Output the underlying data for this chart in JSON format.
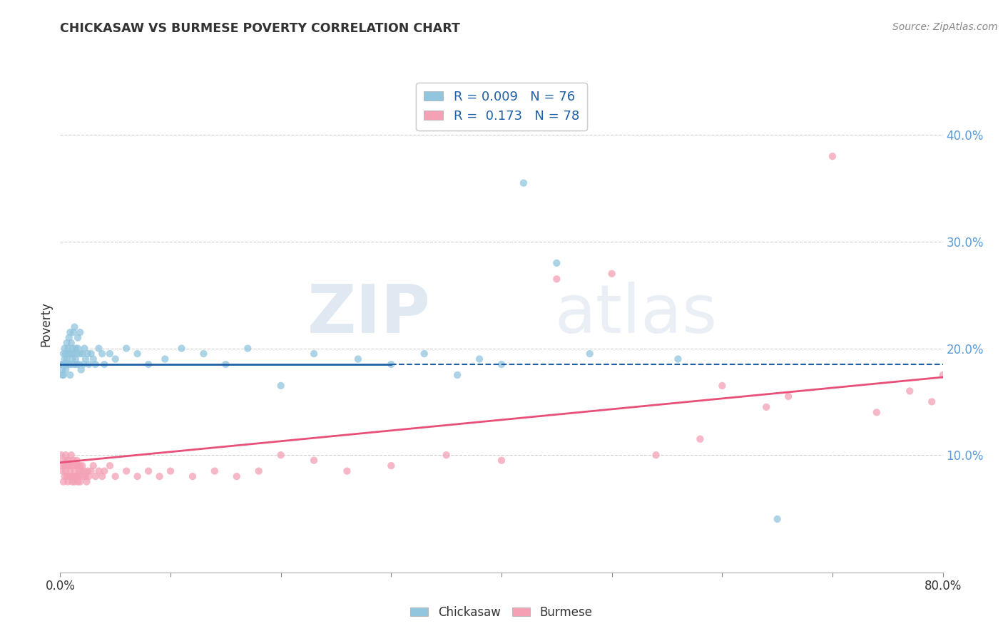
{
  "title": "CHICKASAW VS BURMESE POVERTY CORRELATION CHART",
  "source": "Source: ZipAtlas.com",
  "ylabel": "Poverty",
  "ytick_labels": [
    "10.0%",
    "20.0%",
    "30.0%",
    "40.0%"
  ],
  "ytick_values": [
    0.1,
    0.2,
    0.3,
    0.4
  ],
  "xlim": [
    0.0,
    0.8
  ],
  "ylim": [
    -0.01,
    0.455
  ],
  "xtick_vals": [
    0.0,
    0.1,
    0.2,
    0.3,
    0.4,
    0.5,
    0.6,
    0.7,
    0.8
  ],
  "watermark_zip": "ZIP",
  "watermark_atlas": "atlas",
  "legend_label_1": "R = 0.009   N = 76",
  "legend_label_2": "R =  0.173   N = 78",
  "legend_label_chickasaw": "Chickasaw",
  "legend_label_burmese": "Burmese",
  "chickasaw_color": "#92c5de",
  "burmese_color": "#f4a0b5",
  "chickasaw_line_color": "#1f5fa6",
  "burmese_line_color": "#e8507a",
  "grid_color": "#d0d0d0",
  "background_color": "#ffffff",
  "chickasaw_line_solid_end": 0.3,
  "chickasaw_line_y_start": 0.185,
  "chickasaw_line_y_end": 0.185,
  "burmese_line_y_start": 0.093,
  "burmese_line_y_end": 0.173,
  "chickasaw_x": [
    0.001,
    0.002,
    0.002,
    0.003,
    0.003,
    0.003,
    0.004,
    0.004,
    0.004,
    0.005,
    0.005,
    0.005,
    0.006,
    0.006,
    0.007,
    0.007,
    0.007,
    0.008,
    0.008,
    0.008,
    0.009,
    0.009,
    0.01,
    0.01,
    0.01,
    0.011,
    0.011,
    0.012,
    0.012,
    0.013,
    0.013,
    0.014,
    0.014,
    0.015,
    0.015,
    0.016,
    0.016,
    0.017,
    0.018,
    0.018,
    0.019,
    0.02,
    0.021,
    0.022,
    0.023,
    0.025,
    0.026,
    0.028,
    0.03,
    0.032,
    0.035,
    0.038,
    0.04,
    0.045,
    0.05,
    0.06,
    0.07,
    0.08,
    0.095,
    0.11,
    0.13,
    0.15,
    0.17,
    0.2,
    0.23,
    0.27,
    0.3,
    0.33,
    0.36,
    0.38,
    0.4,
    0.42,
    0.45,
    0.48,
    0.56,
    0.65
  ],
  "chickasaw_y": [
    0.185,
    0.18,
    0.175,
    0.195,
    0.185,
    0.175,
    0.2,
    0.19,
    0.185,
    0.195,
    0.185,
    0.18,
    0.205,
    0.19,
    0.2,
    0.195,
    0.185,
    0.21,
    0.195,
    0.185,
    0.215,
    0.175,
    0.205,
    0.195,
    0.185,
    0.2,
    0.19,
    0.215,
    0.195,
    0.22,
    0.185,
    0.2,
    0.19,
    0.195,
    0.185,
    0.2,
    0.21,
    0.185,
    0.195,
    0.215,
    0.18,
    0.195,
    0.185,
    0.2,
    0.19,
    0.195,
    0.185,
    0.195,
    0.19,
    0.185,
    0.2,
    0.195,
    0.185,
    0.195,
    0.19,
    0.2,
    0.195,
    0.185,
    0.19,
    0.2,
    0.195,
    0.185,
    0.2,
    0.165,
    0.195,
    0.19,
    0.185,
    0.195,
    0.175,
    0.19,
    0.185,
    0.355,
    0.28,
    0.195,
    0.19,
    0.04
  ],
  "burmese_x": [
    0.001,
    0.002,
    0.002,
    0.003,
    0.003,
    0.004,
    0.004,
    0.005,
    0.005,
    0.006,
    0.006,
    0.007,
    0.007,
    0.008,
    0.008,
    0.009,
    0.009,
    0.01,
    0.01,
    0.011,
    0.011,
    0.012,
    0.012,
    0.013,
    0.013,
    0.014,
    0.014,
    0.015,
    0.015,
    0.016,
    0.016,
    0.017,
    0.017,
    0.018,
    0.018,
    0.019,
    0.02,
    0.021,
    0.022,
    0.023,
    0.024,
    0.025,
    0.026,
    0.028,
    0.03,
    0.032,
    0.035,
    0.038,
    0.04,
    0.045,
    0.05,
    0.06,
    0.07,
    0.08,
    0.09,
    0.1,
    0.12,
    0.14,
    0.16,
    0.18,
    0.2,
    0.23,
    0.26,
    0.3,
    0.35,
    0.4,
    0.45,
    0.5,
    0.54,
    0.58,
    0.6,
    0.64,
    0.66,
    0.7,
    0.74,
    0.77,
    0.79,
    0.8
  ],
  "burmese_y": [
    0.1,
    0.09,
    0.085,
    0.095,
    0.075,
    0.09,
    0.08,
    0.1,
    0.085,
    0.095,
    0.08,
    0.09,
    0.075,
    0.095,
    0.08,
    0.09,
    0.085,
    0.1,
    0.08,
    0.09,
    0.075,
    0.095,
    0.08,
    0.085,
    0.075,
    0.09,
    0.08,
    0.095,
    0.08,
    0.09,
    0.075,
    0.085,
    0.08,
    0.09,
    0.075,
    0.085,
    0.09,
    0.08,
    0.085,
    0.08,
    0.075,
    0.085,
    0.08,
    0.085,
    0.09,
    0.08,
    0.085,
    0.08,
    0.085,
    0.09,
    0.08,
    0.085,
    0.08,
    0.085,
    0.08,
    0.085,
    0.08,
    0.085,
    0.08,
    0.085,
    0.1,
    0.095,
    0.085,
    0.09,
    0.1,
    0.095,
    0.265,
    0.27,
    0.1,
    0.115,
    0.165,
    0.145,
    0.155,
    0.38,
    0.14,
    0.16,
    0.15,
    0.175
  ]
}
